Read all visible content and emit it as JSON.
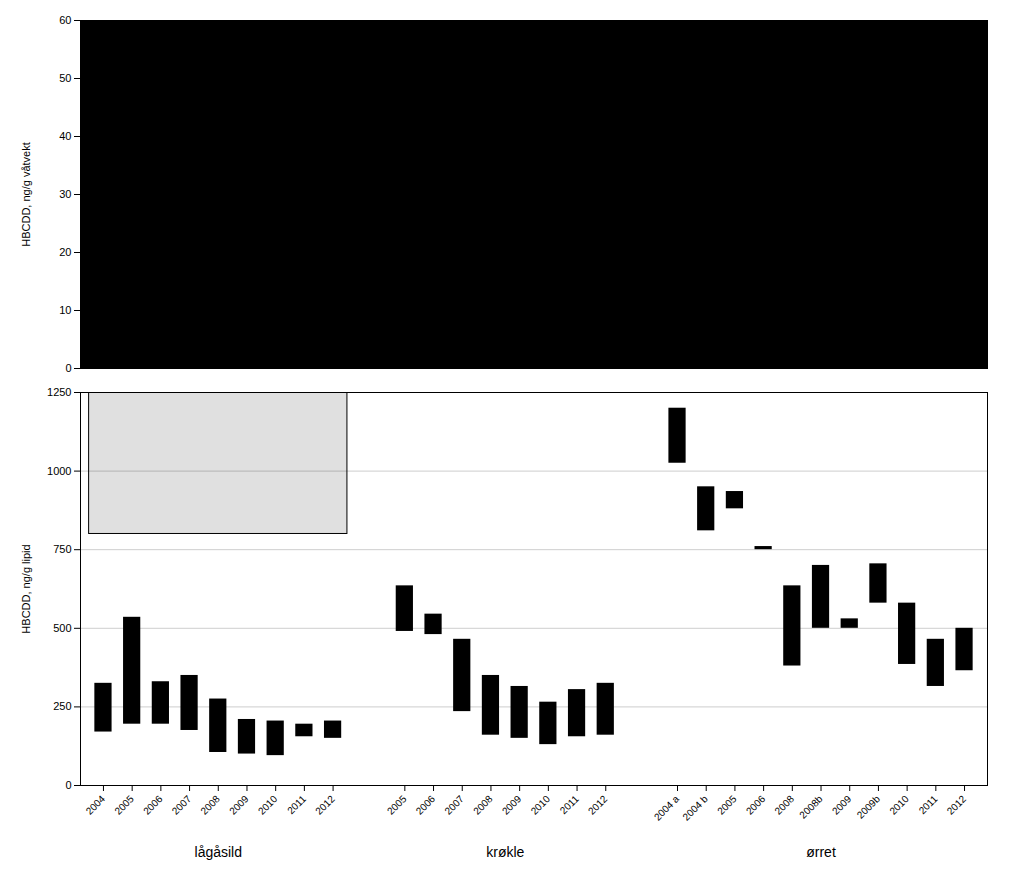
{
  "chart_data": [
    {
      "type": "bar",
      "ylabel": "HBCDD, ng/g våtvekt",
      "categories": [
        null
      ],
      "values": [
        60
      ],
      "ylim": [
        0,
        60
      ],
      "yticks": [
        0,
        10,
        20,
        30,
        40,
        50,
        60
      ],
      "tick_labels": "y"
    },
    {
      "type": "floating_bar",
      "ylabel": "HBCDD, ng/g lipid",
      "ylim": [
        0,
        1250
      ],
      "yticks": [
        0,
        250,
        500,
        750,
        1000,
        1250
      ],
      "grid": true,
      "groups": [
        {
          "name": "lågåsild",
          "categories": [
            "2004",
            "2005",
            "2006",
            "2007",
            "2008",
            "2009",
            "2010",
            "2011",
            "2012"
          ],
          "low": [
            170,
            195,
            195,
            175,
            105,
            100,
            95,
            155,
            150
          ],
          "high": [
            325,
            535,
            330,
            350,
            275,
            210,
            205,
            195,
            205
          ]
        },
        {
          "name": "krøkle",
          "categories": [
            "2005",
            "2006",
            "2007",
            "2008",
            "2009",
            "2010",
            "2011",
            "2012"
          ],
          "low": [
            490,
            480,
            235,
            160,
            150,
            130,
            155,
            160
          ],
          "high": [
            635,
            545,
            465,
            350,
            315,
            265,
            305,
            325
          ]
        },
        {
          "name": "ørret",
          "categories": [
            "2004 a",
            "2004 b",
            "2005",
            "2006",
            "2008",
            "2008b",
            "2009",
            "2009b",
            "2010",
            "2011",
            "2012"
          ],
          "low": [
            1025,
            810,
            935,
            750,
            380,
            500,
            500,
            580,
            385,
            315,
            365
          ],
          "high": [
            1200,
            950,
            880,
            760,
            635,
            700,
            530,
            705,
            580,
            465,
            500
          ]
        }
      ],
      "blank_box": {
        "group": "lågåsild",
        "low": 800,
        "high": 1250
      }
    }
  ]
}
